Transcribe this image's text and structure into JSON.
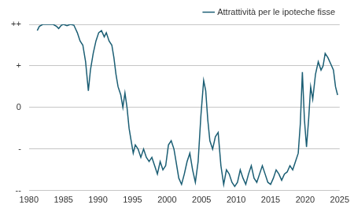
{
  "chart_data": {
    "type": "line",
    "x": [
      1981.2,
      1981.5,
      1982,
      1982.5,
      1983,
      1983.5,
      1984,
      1984.3,
      1984.7,
      1985,
      1985.5,
      1986,
      1986.5,
      1987,
      1987.4,
      1987.8,
      1988.2,
      1988.6,
      1988.9,
      1989.3,
      1989.7,
      1990.1,
      1990.5,
      1990.9,
      1991.2,
      1991.6,
      1992,
      1992.3,
      1992.6,
      1992.9,
      1993.3,
      1993.6,
      1993.9,
      1994.2,
      1994.5,
      1994.8,
      1995.1,
      1995.4,
      1995.8,
      1996.2,
      1996.6,
      1997,
      1997.4,
      1997.8,
      1998.2,
      1998.6,
      1999,
      1999.4,
      1999.8,
      2000.2,
      2000.6,
      2001,
      2001.3,
      2001.7,
      2002.1,
      2002.5,
      2002.9,
      2003.3,
      2003.7,
      2004.1,
      2004.5,
      2004.9,
      2005.3,
      2005.6,
      2005.9,
      2006.2,
      2006.6,
      2007,
      2007.4,
      2007.8,
      2008.2,
      2008.6,
      2009,
      2009.4,
      2009.8,
      2010.2,
      2010.6,
      2011,
      2011.4,
      2011.8,
      2012.2,
      2012.6,
      2013,
      2013.4,
      2013.8,
      2014.2,
      2014.6,
      2015,
      2015.4,
      2015.8,
      2016.2,
      2016.6,
      2017,
      2017.4,
      2017.8,
      2018.2,
      2018.6,
      2019,
      2019.3,
      2019.6,
      2019.9,
      2020.2,
      2020.5,
      2020.8,
      2021.1,
      2021.5,
      2021.9,
      2022.3,
      2022.6,
      2022.9,
      2023.3,
      2023.7,
      2024.1,
      2024.4,
      2024.7
    ],
    "series": [
      {
        "name": "Attrattività per le ipoteche fisse",
        "color": "#1b5e74",
        "values": [
          1.85,
          1.95,
          2.0,
          2.0,
          2.0,
          2.0,
          1.95,
          1.9,
          1.98,
          2.0,
          1.97,
          2.0,
          1.98,
          1.8,
          1.6,
          1.5,
          1.1,
          0.4,
          0.9,
          1.3,
          1.6,
          1.8,
          1.85,
          1.7,
          1.8,
          1.6,
          1.5,
          1.2,
          0.8,
          0.5,
          0.3,
          0.0,
          0.35,
          0.0,
          -0.5,
          -0.8,
          -1.1,
          -0.9,
          -1.0,
          -1.2,
          -1.0,
          -1.2,
          -1.3,
          -1.2,
          -1.4,
          -1.6,
          -1.3,
          -1.5,
          -1.4,
          -0.9,
          -0.8,
          -1.0,
          -1.3,
          -1.7,
          -1.85,
          -1.6,
          -1.3,
          -1.1,
          -1.5,
          -1.8,
          -1.3,
          -0.2,
          0.65,
          0.4,
          -0.3,
          -0.8,
          -1.0,
          -0.7,
          -0.6,
          -1.4,
          -1.85,
          -1.5,
          -1.6,
          -1.8,
          -1.9,
          -1.8,
          -1.5,
          -1.7,
          -1.85,
          -1.6,
          -1.4,
          -1.7,
          -1.8,
          -1.6,
          -1.4,
          -1.6,
          -1.8,
          -1.85,
          -1.7,
          -1.5,
          -1.6,
          -1.75,
          -1.6,
          -1.55,
          -1.4,
          -1.5,
          -1.3,
          -1.1,
          -0.4,
          0.85,
          -0.3,
          -0.95,
          -0.3,
          0.5,
          0.2,
          0.8,
          1.1,
          0.9,
          1.0,
          1.3,
          1.2,
          1.05,
          0.9,
          0.5,
          0.3
        ]
      }
    ],
    "xlim": [
      1980,
      2025
    ],
    "xticks": [
      1980,
      1985,
      1990,
      1995,
      2000,
      2005,
      2010,
      2015,
      2020,
      2025
    ],
    "ylim": [
      -2,
      2
    ],
    "yticks": [
      {
        "value": -2,
        "label": "--"
      },
      {
        "value": -1,
        "label": "-"
      },
      {
        "value": 0,
        "label": "0"
      },
      {
        "value": 1,
        "label": "+"
      },
      {
        "value": 2,
        "label": "++"
      }
    ],
    "grid": true,
    "legend": "top-right"
  }
}
